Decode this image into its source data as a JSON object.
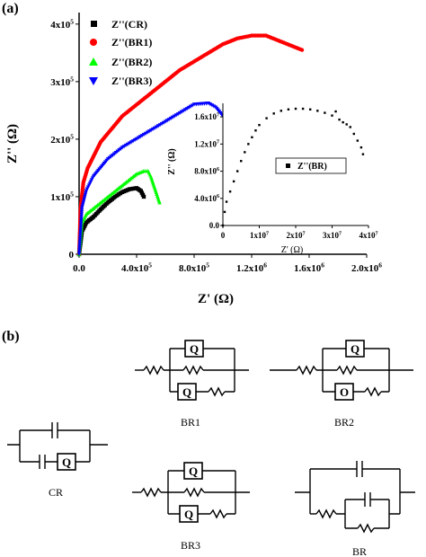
{
  "panel_a": {
    "label": "(a)",
    "legend": [
      "Z''(CR)",
      "Z''(BR1)",
      "Z''(BR2)",
      "Z''(BR3)"
    ]
  },
  "inset": {
    "legend": "Z''(BR)"
  },
  "panel_b": {
    "label": "(b)",
    "labels": {
      "BR1": "BR1",
      "BR2": "BR2",
      "CR": "CR",
      "BR3": "BR3",
      "BR": "BR"
    },
    "element_letters": {
      "cpe": "Q",
      "other": "O"
    }
  },
  "colors": {
    "CR": "#000000",
    "BR1": "#ff0000",
    "BR2": "#00ff00",
    "BR3": "#0000ff",
    "BR": "#000000"
  },
  "chart_data": [
    {
      "type": "scatter",
      "title": "",
      "xlabel": "Z' (Ω)",
      "ylabel": "Z'' (Ω)",
      "xlim": [
        0,
        2000000
      ],
      "ylim": [
        0,
        420000
      ],
      "x_ticks": [
        "0.0",
        "4.0x10^5",
        "8.0x10^5",
        "1.2x10^6",
        "1.6x10^6",
        "2.0x10^6"
      ],
      "y_ticks": [
        "0",
        "1x10^5",
        "2x10^5",
        "3x10^5",
        "4x10^5"
      ],
      "legend_position": "top-left",
      "series": [
        {
          "name": "Z''(CR)",
          "marker": "square",
          "x": [
            0,
            20000,
            50000,
            100000,
            150000,
            200000,
            250000,
            300000,
            350000,
            400000,
            430000,
            450000
          ],
          "y": [
            0,
            40000,
            55000,
            65000,
            78000,
            90000,
            100000,
            108000,
            113000,
            115000,
            110000,
            100000
          ]
        },
        {
          "name": "Z''(BR1)",
          "marker": "circle",
          "x": [
            0,
            10000,
            30000,
            60000,
            100000,
            150000,
            200000,
            300000,
            400000,
            500000,
            600000,
            700000,
            800000,
            900000,
            1000000,
            1100000,
            1200000,
            1300000,
            1400000,
            1500000,
            1550000
          ],
          "y": [
            0,
            80000,
            125000,
            150000,
            170000,
            195000,
            210000,
            240000,
            260000,
            280000,
            300000,
            320000,
            335000,
            350000,
            365000,
            375000,
            380000,
            380000,
            370000,
            360000,
            355000
          ]
        },
        {
          "name": "Z''(BR2)",
          "marker": "triangle-up",
          "x": [
            0,
            20000,
            50000,
            100000,
            150000,
            200000,
            250000,
            300000,
            350000,
            400000,
            450000,
            480000,
            500000,
            520000,
            540000,
            560000
          ],
          "y": [
            0,
            55000,
            70000,
            80000,
            90000,
            100000,
            110000,
            120000,
            130000,
            140000,
            145000,
            145000,
            135000,
            120000,
            105000,
            90000
          ]
        },
        {
          "name": "Z''(BR3)",
          "marker": "triangle-down",
          "x": [
            0,
            20000,
            50000,
            100000,
            150000,
            200000,
            300000,
            400000,
            500000,
            600000,
            700000,
            800000,
            900000,
            950000,
            1000000,
            1050000,
            1100000,
            1150000
          ],
          "y": [
            0,
            80000,
            110000,
            135000,
            150000,
            165000,
            185000,
            200000,
            215000,
            230000,
            245000,
            260000,
            262000,
            255000,
            240000,
            225000,
            210000,
            198000
          ]
        }
      ]
    },
    {
      "type": "scatter",
      "title": "",
      "xlabel": "Z' (Ω)",
      "ylabel": "Z'' (Ω)",
      "xlim": [
        0,
        40000000
      ],
      "ylim": [
        0,
        18000000
      ],
      "x_ticks": [
        "0",
        "1x10^7",
        "2x10^7",
        "3x10^7",
        "4x10^7"
      ],
      "y_ticks": [
        "0.0",
        "4.0x10^6",
        "8.0x10^6",
        "1.2x10^7",
        "1.6x10^7"
      ],
      "legend_position": "right",
      "series": [
        {
          "name": "Z''(BR)",
          "marker": "square",
          "x": [
            0,
            500000,
            1000000,
            2000000,
            3000000,
            4000000,
            5000000,
            6000000,
            7000000,
            8000000,
            9000000,
            10000000,
            12000000,
            14000000,
            16000000,
            18000000,
            20000000,
            22000000,
            24000000,
            26000000,
            28000000,
            30000000,
            31000000,
            32000000,
            33000000,
            34000000,
            35000000,
            36000000,
            37000000,
            38000000,
            38500000
          ],
          "y": [
            0,
            2000000,
            3500000,
            5000000,
            6500000,
            8000000,
            9500000,
            10800000,
            12000000,
            13000000,
            14000000,
            14800000,
            15800000,
            16500000,
            16900000,
            17100000,
            17200000,
            17200000,
            17100000,
            16900000,
            16600000,
            16200000,
            16800000,
            15600000,
            15200000,
            14900000,
            14500000,
            13500000,
            12500000,
            11500000,
            10500000
          ]
        }
      ]
    }
  ]
}
